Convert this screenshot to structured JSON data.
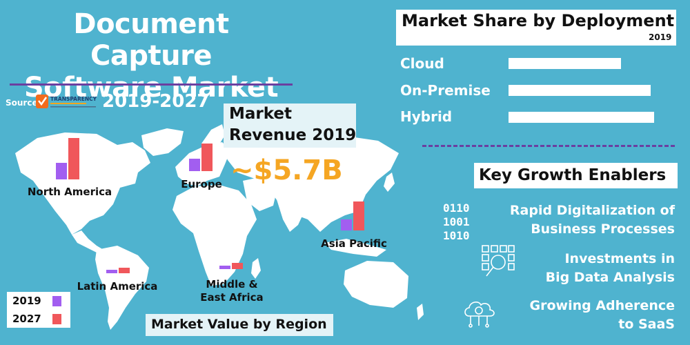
{
  "title": {
    "line1": "Document Capture",
    "line2": "Software Market"
  },
  "source": {
    "label": "Source:",
    "logo_text": "TRANSPARENCY"
  },
  "period": "2019-2027",
  "revenue": {
    "title_line1": "Market",
    "title_line2": "Revenue 2019",
    "value": "~$5.7B",
    "value_color": "#f5a623"
  },
  "colors": {
    "background": "#4fb3cf",
    "bar_2019": "#a25ef0",
    "bar_2027": "#f0575b",
    "accent_rule": "#6b3fa0"
  },
  "deployment": {
    "title": "Market Share by Deployment",
    "year": "2019",
    "items": [
      {
        "label": "Cloud",
        "share": 0.68
      },
      {
        "label": "On-Premise",
        "share": 0.86
      },
      {
        "label": "Hybrid",
        "share": 0.88
      }
    ]
  },
  "growth": {
    "title": "Key Growth Enablers",
    "items": [
      {
        "line1": "Rapid Digitalization of",
        "line2": "Business Processes",
        "icon": "binary-code-icon"
      },
      {
        "line1": "Investments in",
        "line2": "Big Data Analysis",
        "icon": "data-magnifier-icon"
      },
      {
        "line1": "Growing Adherence",
        "line2": "to SaaS",
        "icon": "cloud-gear-icon"
      }
    ],
    "binary": [
      "0110",
      "1001",
      "1010"
    ]
  },
  "legend": [
    {
      "label": "2019",
      "color": "#a25ef0"
    },
    {
      "label": "2027",
      "color": "#f0575b"
    }
  ],
  "map_title": "Market Value by Region",
  "chart_data": {
    "type": "bar",
    "title": "Market Value by Region",
    "series": [
      {
        "name": "2019"
      },
      {
        "name": "2027"
      }
    ],
    "regions": [
      {
        "name": "North America",
        "line1": "North America",
        "line2": "",
        "v2019": 24,
        "v2027": 60
      },
      {
        "name": "Europe",
        "line1": "Europe",
        "line2": "",
        "v2019": 18,
        "v2027": 40
      },
      {
        "name": "Asia Pacific",
        "line1": "Asia Pacific",
        "line2": "",
        "v2019": 16,
        "v2027": 42
      },
      {
        "name": "Latin America",
        "line1": "Latin America",
        "line2": "",
        "v2019": 5,
        "v2027": 8
      },
      {
        "name": "Middle & East Africa",
        "line1": "Middle &",
        "line2": "East Africa",
        "v2019": 5,
        "v2027": 9
      }
    ]
  }
}
